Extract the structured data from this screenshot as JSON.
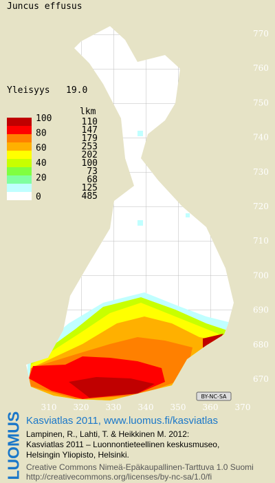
{
  "header": {
    "species": "Juncus effusus",
    "frequency_label": "Yleisyys",
    "frequency_value": "19.0"
  },
  "legend": {
    "count_header": "lkm",
    "class_labels": [
      "100",
      "80",
      "60",
      "40",
      "20",
      "0"
    ],
    "counts": [
      "110",
      "147",
      "179",
      "253",
      "202",
      "100",
      "73",
      "68",
      "125",
      "485"
    ]
  },
  "map": {
    "xticks": [
      "310",
      "320",
      "330",
      "340",
      "350",
      "360",
      "370"
    ],
    "yticks": [
      "770",
      "760",
      "750",
      "740",
      "730",
      "720",
      "710",
      "700",
      "690",
      "680",
      "670"
    ],
    "license_badge": "BY-NC-SA"
  },
  "footer": {
    "logo": "LUOMUS",
    "headline": "Kasviatlas 2011, www.luomus.fi/kasviatlas",
    "citation": [
      "Lampinen, R., Lahti, T. & Heikkinen M. 2012:",
      "Kasviatlas 2011 – Luonnontieteellinen keskusmuseo,",
      "Helsingin Yliopisto, Helsinki."
    ],
    "license": [
      "Creative Commons Nimeä-Epäkaupallinen-Tarttuva 1.0 Suomi",
      "http://creativecommons.org/licenses/by-nc-sa/1.0/fi"
    ]
  }
}
